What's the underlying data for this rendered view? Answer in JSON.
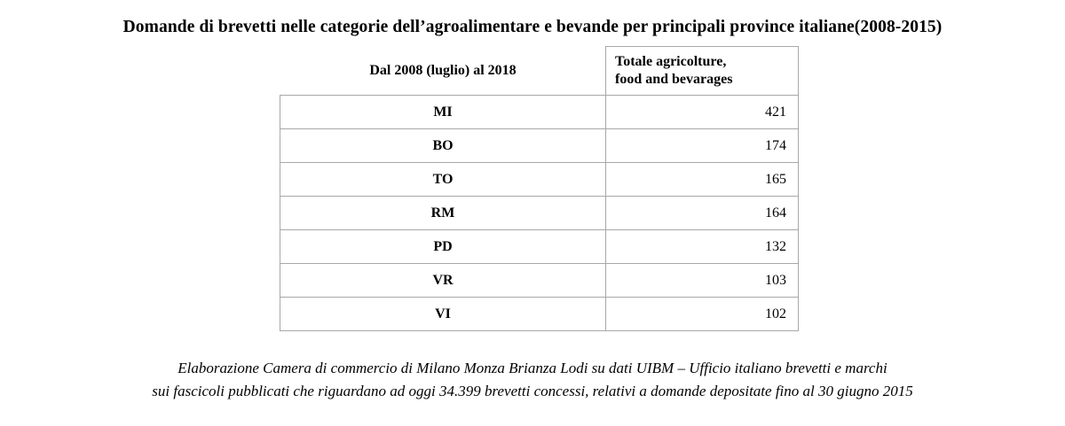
{
  "title": "Domande di brevetti nelle categorie dell’agroalimentare e bevande per principali province italiane(2008-2015)",
  "table": {
    "header": {
      "label_column": "Dal 2008 (luglio)  al 2018",
      "value_column_line1": "Totale agricolture,",
      "value_column_line2": "food and bevarages"
    },
    "rows": [
      {
        "code": "MI",
        "value": 421
      },
      {
        "code": "BO",
        "value": 174
      },
      {
        "code": "TO",
        "value": 165
      },
      {
        "code": "RM",
        "value": 164
      },
      {
        "code": "PD",
        "value": 132
      },
      {
        "code": "VR",
        "value": 103
      },
      {
        "code": "VI",
        "value": 102
      }
    ]
  },
  "footer": {
    "line1": "Elaborazione Camera di commercio di Milano Monza Brianza Lodi su dati UIBM – Ufficio italiano brevetti e marchi",
    "line2": "sui fascicoli pubblicati che riguardano ad oggi 34.399 brevetti concessi, relativi a domande depositate fino al 30 giugno 2015"
  },
  "colors": {
    "text": "#000000",
    "border": "#a8a8a8",
    "background": "#ffffff"
  }
}
